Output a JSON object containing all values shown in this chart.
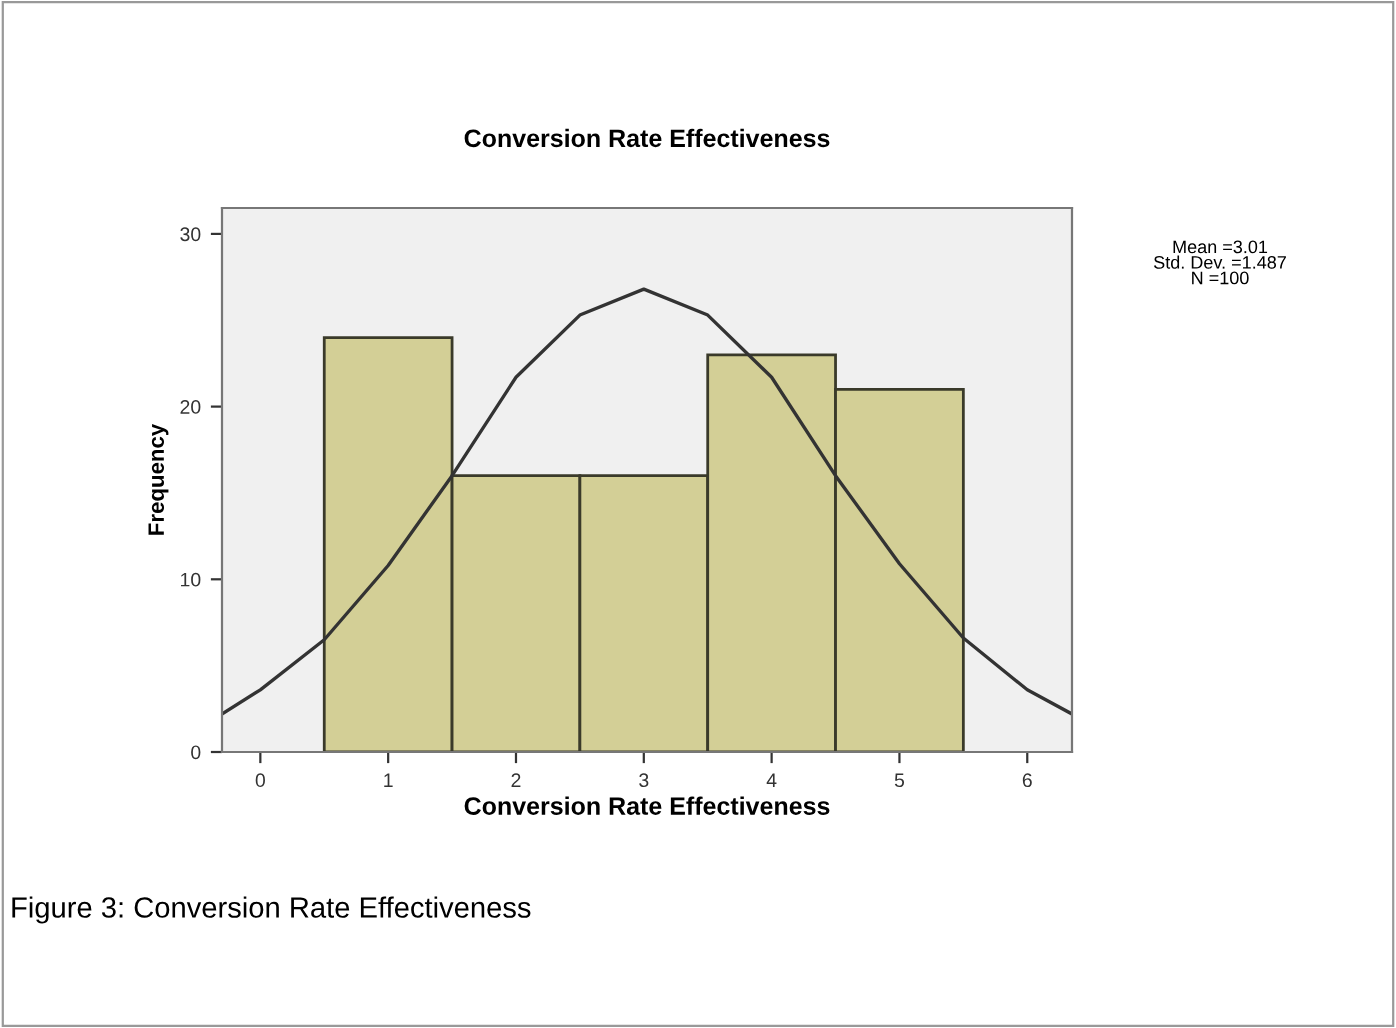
{
  "chart_data": {
    "type": "histogram",
    "title": "Conversion Rate Effectiveness",
    "xlabel": "Conversion Rate Effectiveness",
    "ylabel": "Frequency",
    "bins": [
      0.5,
      1.5,
      2.5,
      3.5,
      4.5,
      5.5
    ],
    "values": [
      24,
      16,
      16,
      23,
      21
    ],
    "color": "#d3cf96",
    "series": [
      {
        "type": "line",
        "color": "#333333",
        "x": [
          -0.3,
          0,
          0.5,
          1,
          1.5,
          2,
          2.5,
          3,
          3.5,
          4,
          4.5,
          5,
          5.5,
          6,
          6.35
        ],
        "values": [
          2.2,
          3.6,
          6.5,
          10.8,
          16,
          21.7,
          25.3,
          26.8,
          25.3,
          21.7,
          16,
          10.9,
          6.6,
          3.6,
          2.2
        ]
      }
    ],
    "xlim": [
      -0.3,
      6.35
    ],
    "ylim": [
      0,
      31.5
    ],
    "xticks": [
      0,
      1,
      2,
      3,
      4,
      5,
      6
    ],
    "yticks": [
      0,
      10,
      20,
      30
    ],
    "grid": false,
    "legend": false,
    "annotations": [
      "Mean =3.01\nStd. Dev. =1.487\nN =100",
      "Figure 3: Conversion Rate Effectiveness"
    ]
  }
}
